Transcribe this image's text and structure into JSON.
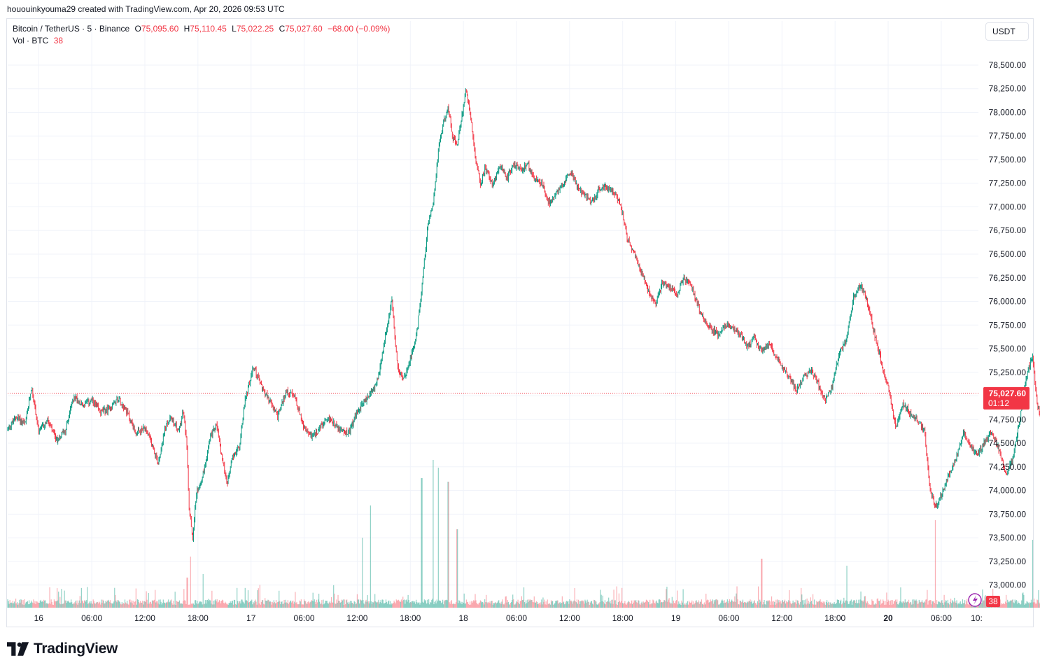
{
  "header": {
    "credit": "hououinkyouma29 created with TradingView.com, Apr 20, 2026 09:53 UTC"
  },
  "legend": {
    "symbol": "Bitcoin / TetherUS · 5 · Binance",
    "open_label": "O",
    "open": "75,095.60",
    "high_label": "H",
    "high": "75,110.45",
    "low_label": "L",
    "low": "75,022.25",
    "close_label": "C",
    "close": "75,027.60",
    "change": "−68.00 (−0.09%)",
    "volume_label": "Vol · BTC",
    "volume": "38"
  },
  "currency": "USDT",
  "price_badge": {
    "price": "75,027.60",
    "countdown": "01:12"
  },
  "volume_badge": "38",
  "logo": "TradingView",
  "chart_data": {
    "type": "candlestick",
    "symbol": "Bitcoin / TetherUS",
    "interval": "5",
    "exchange": "Binance",
    "y_ticks": [
      73000,
      73250,
      73500,
      73750,
      74000,
      74250,
      74500,
      74750,
      75000,
      75250,
      75500,
      75750,
      76000,
      76250,
      76500,
      76750,
      77000,
      77250,
      77500,
      77750,
      78000,
      78250,
      78500
    ],
    "y_tick_labels": [
      "73,000.00",
      "73,250.00",
      "73,500.00",
      "73,750.00",
      "74,000.00",
      "74,250.00",
      "74,500.00",
      "74,750.00",
      "",
      "75,250.00",
      "75,500.00",
      "75,750.00",
      "76,000.00",
      "76,250.00",
      "76,500.00",
      "76,750.00",
      "77,000.00",
      "77,250.00",
      "77,500.00",
      "77,750.00",
      "78,000.00",
      "78,250.00",
      "78,500.00"
    ],
    "x_ticks": [
      {
        "label": "16",
        "h": 0,
        "bold": false
      },
      {
        "label": "06:00",
        "h": 6,
        "bold": false
      },
      {
        "label": "12:00",
        "h": 12,
        "bold": false
      },
      {
        "label": "18:00",
        "h": 18,
        "bold": false
      },
      {
        "label": "17",
        "h": 24,
        "bold": false
      },
      {
        "label": "06:00",
        "h": 30,
        "bold": false
      },
      {
        "label": "12:00",
        "h": 36,
        "bold": false
      },
      {
        "label": "18:00",
        "h": 42,
        "bold": false
      },
      {
        "label": "18",
        "h": 48,
        "bold": false
      },
      {
        "label": "06:00",
        "h": 54,
        "bold": false
      },
      {
        "label": "12:00",
        "h": 60,
        "bold": false
      },
      {
        "label": "18:00",
        "h": 66,
        "bold": false
      },
      {
        "label": "19",
        "h": 72,
        "bold": false
      },
      {
        "label": "06:00",
        "h": 78,
        "bold": false
      },
      {
        "label": "12:00",
        "h": 84,
        "bold": false
      },
      {
        "label": "18:00",
        "h": 90,
        "bold": false
      },
      {
        "label": "20",
        "h": 96,
        "bold": true
      },
      {
        "label": "06:00",
        "h": 102,
        "bold": false
      },
      {
        "label": "10:",
        "h": 106,
        "bold": false
      }
    ],
    "x_start_h": -3.5,
    "x_end_h": 106.2,
    "y_range": [
      72760,
      78670
    ],
    "price_path": [
      [
        -3.5,
        74650
      ],
      [
        -2.5,
        74780
      ],
      [
        -1.5,
        74700
      ],
      [
        -0.8,
        75100
      ],
      [
        0,
        74620
      ],
      [
        1,
        74740
      ],
      [
        2,
        74530
      ],
      [
        3,
        74640
      ],
      [
        4,
        75000
      ],
      [
        5,
        74900
      ],
      [
        6,
        74950
      ],
      [
        7,
        74830
      ],
      [
        8,
        74860
      ],
      [
        9,
        74980
      ],
      [
        10,
        74830
      ],
      [
        11,
        74600
      ],
      [
        12,
        74650
      ],
      [
        12.8,
        74490
      ],
      [
        13.5,
        74290
      ],
      [
        14.3,
        74670
      ],
      [
        15,
        74770
      ],
      [
        15.8,
        74620
      ],
      [
        16.3,
        74840
      ],
      [
        16.7,
        74550
      ],
      [
        17,
        73830
      ],
      [
        17.4,
        73490
      ],
      [
        17.8,
        73960
      ],
      [
        18.6,
        74180
      ],
      [
        19.4,
        74560
      ],
      [
        20.1,
        74710
      ],
      [
        20.7,
        74350
      ],
      [
        21.3,
        74080
      ],
      [
        22,
        74380
      ],
      [
        22.7,
        74460
      ],
      [
        23.3,
        74950
      ],
      [
        24.3,
        75310
      ],
      [
        25.2,
        75100
      ],
      [
        26,
        74960
      ],
      [
        27,
        74780
      ],
      [
        28,
        75060
      ],
      [
        29,
        74980
      ],
      [
        30,
        74650
      ],
      [
        31,
        74570
      ],
      [
        32,
        74690
      ],
      [
        33,
        74760
      ],
      [
        34,
        74640
      ],
      [
        35,
        74600
      ],
      [
        35.8,
        74780
      ],
      [
        36.6,
        74920
      ],
      [
        37.5,
        75020
      ],
      [
        38.4,
        75190
      ],
      [
        39.2,
        75640
      ],
      [
        39.9,
        76020
      ],
      [
        40.5,
        75350
      ],
      [
        41.2,
        75150
      ],
      [
        42,
        75390
      ],
      [
        42.7,
        75640
      ],
      [
        43.3,
        76150
      ],
      [
        44,
        76820
      ],
      [
        44.6,
        77050
      ],
      [
        45.2,
        77630
      ],
      [
        45.8,
        77930
      ],
      [
        46.3,
        78050
      ],
      [
        46.8,
        77740
      ],
      [
        47.3,
        77640
      ],
      [
        47.9,
        78000
      ],
      [
        48.3,
        78250
      ],
      [
        48.7,
        78050
      ],
      [
        49.3,
        77550
      ],
      [
        49.9,
        77240
      ],
      [
        50.5,
        77420
      ],
      [
        51.3,
        77230
      ],
      [
        52.1,
        77420
      ],
      [
        52.9,
        77300
      ],
      [
        53.7,
        77450
      ],
      [
        54.5,
        77380
      ],
      [
        55.3,
        77450
      ],
      [
        56.1,
        77280
      ],
      [
        56.9,
        77240
      ],
      [
        57.7,
        77040
      ],
      [
        58.5,
        77150
      ],
      [
        59.3,
        77250
      ],
      [
        60.1,
        77380
      ],
      [
        60.9,
        77200
      ],
      [
        61.7,
        77120
      ],
      [
        62.5,
        77050
      ],
      [
        63.3,
        77180
      ],
      [
        64.1,
        77220
      ],
      [
        64.9,
        77160
      ],
      [
        65.7,
        77050
      ],
      [
        66.5,
        76660
      ],
      [
        67.3,
        76520
      ],
      [
        68.1,
        76320
      ],
      [
        68.9,
        76120
      ],
      [
        69.7,
        75980
      ],
      [
        70.5,
        76200
      ],
      [
        71.3,
        76150
      ],
      [
        72.1,
        76080
      ],
      [
        72.9,
        76240
      ],
      [
        73.7,
        76180
      ],
      [
        74.5,
        75960
      ],
      [
        75.3,
        75780
      ],
      [
        76.1,
        75700
      ],
      [
        76.9,
        75650
      ],
      [
        77.7,
        75770
      ],
      [
        78.5,
        75700
      ],
      [
        79.3,
        75660
      ],
      [
        80.1,
        75520
      ],
      [
        80.9,
        75610
      ],
      [
        81.7,
        75480
      ],
      [
        82.5,
        75560
      ],
      [
        83.3,
        75420
      ],
      [
        84.1,
        75300
      ],
      [
        84.9,
        75180
      ],
      [
        85.7,
        75060
      ],
      [
        86.5,
        75200
      ],
      [
        87.3,
        75280
      ],
      [
        88.1,
        75130
      ],
      [
        88.9,
        74950
      ],
      [
        89.7,
        75120
      ],
      [
        90.5,
        75450
      ],
      [
        91.3,
        75600
      ],
      [
        92.1,
        76040
      ],
      [
        92.9,
        76180
      ],
      [
        93.7,
        75980
      ],
      [
        94.5,
        75630
      ],
      [
        95.3,
        75330
      ],
      [
        96.1,
        75060
      ],
      [
        96.9,
        74650
      ],
      [
        97.7,
        74920
      ],
      [
        98.5,
        74810
      ],
      [
        99.3,
        74750
      ],
      [
        100.1,
        74620
      ],
      [
        100.7,
        74050
      ],
      [
        101.3,
        73820
      ],
      [
        102.1,
        73960
      ],
      [
        102.9,
        74180
      ],
      [
        103.7,
        74350
      ],
      [
        104.5,
        74620
      ],
      [
        105.3,
        74460
      ],
      [
        106.1,
        74370
      ],
      [
        106.9,
        74510
      ],
      [
        107.7,
        74630
      ],
      [
        108.5,
        74450
      ],
      [
        109.3,
        74150
      ],
      [
        110.1,
        74350
      ],
      [
        110.9,
        74760
      ],
      [
        111.6,
        75200
      ],
      [
        112.3,
        75420
      ],
      [
        112.9,
        74880
      ],
      [
        113.5,
        74700
      ],
      [
        114.1,
        75060
      ],
      [
        114.5,
        75180
      ],
      [
        114.8,
        75040
      ]
    ],
    "last_price": 75027.6,
    "volume_spikes": [
      [
        16.8,
        43
      ],
      [
        17.2,
        73
      ],
      [
        18.6,
        48
      ],
      [
        36.6,
        100
      ],
      [
        37.5,
        146
      ],
      [
        43.3,
        185
      ],
      [
        44.6,
        211
      ],
      [
        45.2,
        200
      ],
      [
        46.3,
        180
      ],
      [
        47.3,
        112
      ],
      [
        81.7,
        70
      ],
      [
        91.3,
        60
      ],
      [
        101.3,
        125
      ],
      [
        112.3,
        97
      ],
      [
        113.0,
        25
      ]
    ]
  }
}
